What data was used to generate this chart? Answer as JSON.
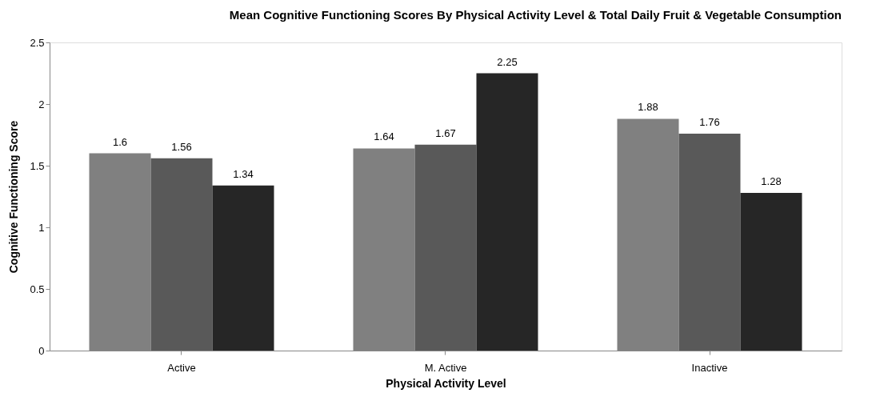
{
  "chart_data": {
    "type": "bar",
    "title": "Mean Cognitive Functioning Scores By Physical Activity Level  & Total Daily Fruit & Vegetable Consumption",
    "xlabel": "Physical Activity Level",
    "ylabel": "Cognitive Functioning Score",
    "categories": [
      "Active",
      "M. Active",
      "Inactive"
    ],
    "series": [
      {
        "color": "#808080",
        "values": [
          1.6,
          1.64,
          1.88
        ]
      },
      {
        "color": "#595959",
        "values": [
          1.56,
          1.67,
          1.76
        ]
      },
      {
        "color": "#262626",
        "values": [
          1.34,
          2.25,
          1.28
        ]
      }
    ],
    "ylim": [
      0,
      2.5
    ],
    "yticks": [
      0,
      0.5,
      1,
      1.5,
      2,
      2.5
    ],
    "grid": false,
    "legend": false,
    "data_labels": true
  }
}
